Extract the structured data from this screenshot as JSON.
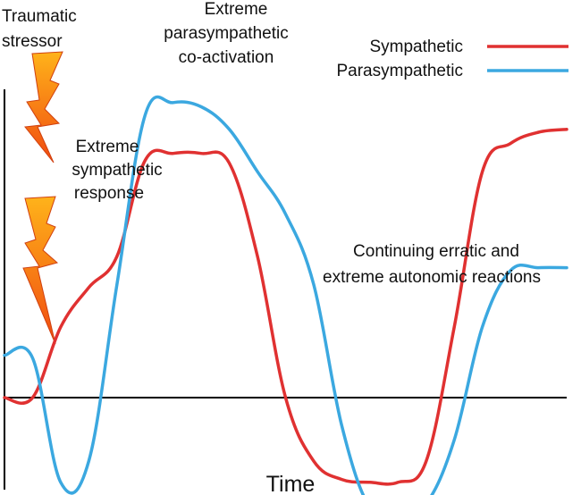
{
  "chart_data": {
    "type": "line",
    "title": "",
    "xlabel": "Time",
    "ylabel": "",
    "grid": false,
    "legend": "top-right",
    "x": [
      0,
      5,
      10,
      15,
      20,
      25,
      30,
      35,
      40,
      45,
      50,
      55,
      60,
      65,
      70,
      75,
      80,
      85,
      90,
      95,
      100
    ],
    "series": [
      {
        "name": "Sympathetic",
        "color": "#e03131",
        "values": [
          0.0,
          0.0,
          0.5,
          0.78,
          1.0,
          1.68,
          1.73,
          1.73,
          1.66,
          1.0,
          0.0,
          -0.45,
          -0.58,
          -0.6,
          -0.6,
          -0.45,
          0.5,
          1.6,
          1.8,
          1.88,
          1.9
        ]
      },
      {
        "name": "Parasympathetic",
        "color": "#3ba8e0",
        "values": [
          0.3,
          0.28,
          -0.6,
          -0.45,
          0.8,
          2.0,
          2.09,
          2.06,
          1.9,
          1.6,
          1.3,
          0.8,
          -0.2,
          -0.78,
          -0.82,
          -0.75,
          -0.3,
          0.5,
          0.9,
          0.92,
          0.92
        ]
      }
    ],
    "annotations": {
      "stressor": [
        "Traumatic",
        "stressor"
      ],
      "sympathetic_response": [
        "Extreme",
        "sympathetic",
        "response"
      ],
      "coactivation": [
        "Extreme",
        "parasympathetic",
        "co-activation"
      ],
      "erratic": [
        "Continuing erratic and",
        "extreme autonomic reactions"
      ]
    }
  }
}
